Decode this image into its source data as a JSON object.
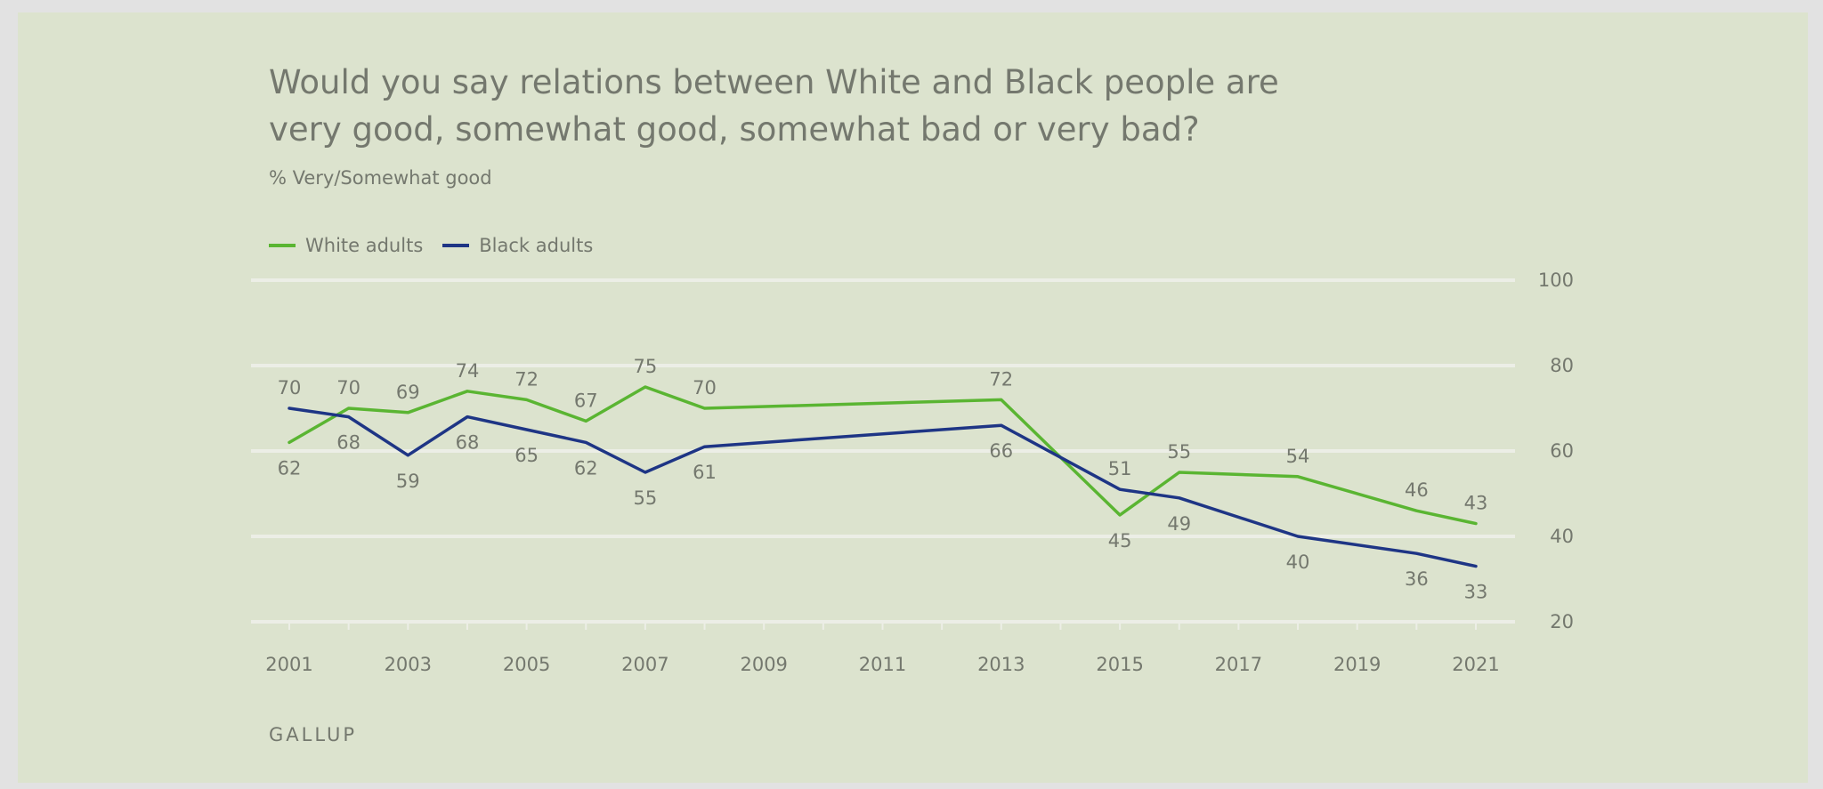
{
  "title_lines": [
    "Would you say relations between White and Black people are",
    "very good, somewhat good, somewhat bad or very bad?"
  ],
  "subtitle": "% Very/Somewhat good",
  "source": "GALLUP",
  "colors": {
    "background": "#dce3ce",
    "gridline": "#eceee6",
    "text": "#74786e",
    "white_adults": "#5ab532",
    "black_adults": "#1e3585"
  },
  "chart_data": {
    "type": "line",
    "title": "Would you say relations between White and Black people are very good, somewhat good, somewhat bad or very bad?",
    "subtitle": "% Very/Somewhat good",
    "xlim": [
      2001,
      2021
    ],
    "ylim": [
      20,
      100
    ],
    "x_ticks": [
      "2001",
      "2003",
      "2005",
      "2007",
      "2009",
      "2011",
      "2013",
      "2015",
      "2017",
      "2019",
      "2021"
    ],
    "y_ticks": [
      "20",
      "40",
      "60",
      "80",
      "100"
    ],
    "y_axis_position": "right",
    "grid": true,
    "legend_position": "top-left",
    "series": [
      {
        "name": "White adults",
        "color": "#5ab532",
        "x": [
          2001,
          2002,
          2003,
          2004,
          2005,
          2006,
          2007,
          2008,
          2013,
          2015,
          2016,
          2018,
          2020,
          2021
        ],
        "y": [
          62,
          70,
          69,
          74,
          72,
          67,
          75,
          70,
          72,
          45,
          55,
          54,
          46,
          43
        ],
        "label_pos": [
          "below",
          "above",
          "above",
          "above",
          "above",
          "above",
          "above",
          "above",
          "above",
          "below",
          "above",
          "above",
          "above",
          "above"
        ]
      },
      {
        "name": "Black adults",
        "color": "#1e3585",
        "x": [
          2001,
          2002,
          2003,
          2004,
          2005,
          2006,
          2007,
          2008,
          2013,
          2015,
          2016,
          2018,
          2020,
          2021
        ],
        "y": [
          70,
          68,
          59,
          68,
          65,
          62,
          55,
          61,
          66,
          51,
          49,
          40,
          36,
          33
        ],
        "label_pos": [
          "above",
          "below",
          "below",
          "below",
          "below",
          "below",
          "below",
          "below",
          "below",
          "above",
          "below",
          "below",
          "below",
          "below"
        ]
      }
    ]
  }
}
